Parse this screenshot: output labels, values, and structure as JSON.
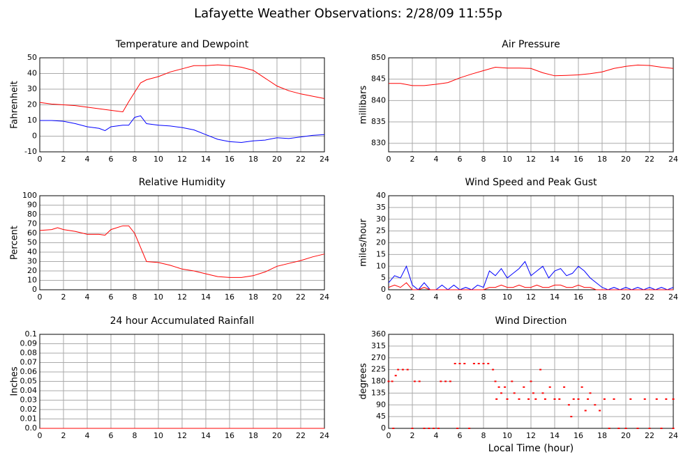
{
  "title": "Lafayette Weather Observations: 2/28/09 11:55p",
  "xlabel": "Local Time (hour)",
  "chart_data": [
    {
      "type": "line",
      "title": "Temperature and Dewpoint",
      "ylabel": "Fahrenheit",
      "x": [
        0,
        1,
        2,
        3,
        4,
        5,
        5.5,
        6,
        7,
        7.5,
        8,
        8.5,
        9,
        10,
        11,
        12,
        13,
        14,
        15,
        16,
        17,
        18,
        19,
        20,
        21,
        22,
        23,
        24
      ],
      "series": [
        {
          "color": "#ff0000",
          "values": [
            21.5,
            20.5,
            20,
            19.5,
            18.5,
            17.5,
            17,
            16.5,
            15.5,
            22,
            28,
            34,
            36,
            38,
            41,
            43,
            45,
            45,
            45.5,
            45,
            44,
            42,
            37,
            32,
            29,
            27,
            25.5,
            24
          ]
        },
        {
          "color": "#0000ff",
          "values": [
            10,
            10,
            9.5,
            8,
            6,
            5,
            3.5,
            6,
            7,
            7,
            12,
            13,
            8,
            7,
            6.5,
            5.5,
            4,
            1,
            -2,
            -3.5,
            -4,
            -3,
            -2.5,
            -1,
            -1.5,
            -0.5,
            0.5,
            1
          ]
        }
      ],
      "xlim": [
        0,
        24
      ],
      "xticks": [
        0,
        2,
        4,
        6,
        8,
        10,
        12,
        14,
        16,
        18,
        20,
        22,
        24
      ],
      "ylim": [
        -10,
        50
      ],
      "yticks": [
        -10,
        0,
        10,
        20,
        30,
        40,
        50
      ],
      "grid": true
    },
    {
      "type": "line",
      "title": "Air Pressure",
      "ylabel": "millibars",
      "x": [
        0,
        1,
        2,
        3,
        4,
        5,
        6,
        7,
        8,
        9,
        10,
        11,
        12,
        13,
        14,
        15,
        16,
        17,
        18,
        19,
        20,
        21,
        22,
        23,
        24
      ],
      "series": [
        {
          "color": "#ff0000",
          "values": [
            844,
            844,
            843.5,
            843.5,
            843.8,
            844.2,
            845.3,
            846.2,
            847,
            847.8,
            847.6,
            847.6,
            847.5,
            846.5,
            845.8,
            845.9,
            846,
            846.3,
            846.7,
            847.5,
            848,
            848.3,
            848.2,
            847.8,
            847.5
          ]
        }
      ],
      "xlim": [
        0,
        24
      ],
      "xticks": [
        0,
        2,
        4,
        6,
        8,
        10,
        12,
        14,
        16,
        18,
        20,
        22,
        24
      ],
      "ylim": [
        828,
        850
      ],
      "yticks": [
        830,
        835,
        840,
        845,
        850
      ],
      "grid": true
    },
    {
      "type": "line",
      "title": "Relative Humidity",
      "ylabel": "Percent",
      "x": [
        0,
        1,
        1.5,
        2,
        3,
        4,
        5,
        5.5,
        6,
        7,
        7.5,
        8,
        8.5,
        9,
        10,
        11,
        12,
        13,
        14,
        15,
        16,
        17,
        18,
        19,
        20,
        21,
        22,
        23,
        24
      ],
      "series": [
        {
          "color": "#ff0000",
          "values": [
            63,
            64,
            66,
            64,
            62,
            59,
            59,
            58,
            64,
            68,
            68,
            60,
            45,
            30,
            29,
            26,
            22,
            20,
            17,
            14,
            13,
            13,
            15,
            19,
            25,
            28,
            31,
            35,
            38
          ]
        }
      ],
      "xlim": [
        0,
        24
      ],
      "xticks": [
        0,
        2,
        4,
        6,
        8,
        10,
        12,
        14,
        16,
        18,
        20,
        22,
        24
      ],
      "ylim": [
        0,
        100
      ],
      "yticks": [
        0,
        10,
        20,
        30,
        40,
        50,
        60,
        70,
        80,
        90,
        100
      ],
      "grid": true
    },
    {
      "type": "line",
      "title": "Wind Speed and Peak Gust",
      "ylabel": "miles/hour",
      "x": [
        0,
        0.5,
        1,
        1.5,
        2,
        2.5,
        3,
        3.5,
        4,
        4.5,
        5,
        5.5,
        6,
        6.5,
        7,
        7.5,
        8,
        8.5,
        9,
        9.5,
        10,
        10.5,
        11,
        11.5,
        12,
        12.5,
        13,
        13.5,
        14,
        14.5,
        15,
        15.5,
        16,
        16.5,
        17,
        17.5,
        18,
        18.5,
        19,
        19.5,
        20,
        20.5,
        21,
        21.5,
        22,
        22.5,
        23,
        23.5,
        24
      ],
      "series": [
        {
          "color": "#0000ff",
          "values": [
            3,
            6,
            5,
            10,
            2,
            0,
            3,
            0,
            0,
            2,
            0,
            2,
            0,
            1,
            0,
            2,
            1,
            8,
            6,
            9,
            5,
            7,
            9,
            12,
            6,
            8,
            10,
            5,
            8,
            9,
            6,
            7,
            10,
            8,
            5,
            3,
            1,
            0,
            1,
            0,
            1,
            0,
            1,
            0,
            1,
            0,
            1,
            0,
            1
          ]
        },
        {
          "color": "#ff0000",
          "values": [
            1,
            2,
            1,
            3,
            0,
            0,
            1,
            0,
            0,
            0,
            0,
            0,
            0,
            0,
            0,
            0,
            0,
            1,
            1,
            2,
            1,
            1,
            2,
            1,
            1,
            2,
            1,
            1,
            2,
            2,
            1,
            1,
            2,
            1,
            1,
            0,
            0,
            0,
            0,
            0,
            0,
            0,
            0,
            0,
            0,
            0,
            0,
            0,
            0
          ]
        }
      ],
      "xlim": [
        0,
        24
      ],
      "xticks": [
        0,
        2,
        4,
        6,
        8,
        10,
        12,
        14,
        16,
        18,
        20,
        22,
        24
      ],
      "ylim": [
        0,
        40
      ],
      "yticks": [
        0,
        5,
        10,
        15,
        20,
        25,
        30,
        35,
        40
      ],
      "grid": true
    },
    {
      "type": "line",
      "title": "24 hour Accumulated Rainfall",
      "ylabel": "Inches",
      "x": [
        0,
        24
      ],
      "series": [
        {
          "color": "#ff0000",
          "values": [
            0,
            0
          ]
        }
      ],
      "xlim": [
        0,
        24
      ],
      "xticks": [
        0,
        2,
        4,
        6,
        8,
        10,
        12,
        14,
        16,
        18,
        20,
        22,
        24
      ],
      "ylim": [
        0,
        0.1
      ],
      "yticks": [
        {
          "value": 0,
          "label": "0.0"
        },
        0.01,
        0.02,
        0.03,
        0.04,
        0.05,
        0.06,
        0.07,
        0.08,
        0.09,
        0.1
      ],
      "grid": true
    },
    {
      "type": "scatter",
      "title": "Wind Direction",
      "ylabel": "degrees",
      "x": [
        0,
        0.3,
        0.4,
        0.6,
        0.8,
        1.2,
        1.6,
        2,
        2.2,
        2.6,
        3,
        3.4,
        3.8,
        4.2,
        4.4,
        4.8,
        5.2,
        5.6,
        5.8,
        6,
        6.4,
        6.8,
        7.2,
        7.6,
        8,
        8.4,
        8.8,
        9,
        9.1,
        9.3,
        9.5,
        9.8,
        10,
        10.4,
        10.6,
        11,
        11.4,
        11.8,
        12,
        12.2,
        12.4,
        12.8,
        13,
        13.2,
        13.6,
        14,
        14.4,
        14.8,
        15.2,
        15.4,
        15.6,
        16,
        16.3,
        16.6,
        16.8,
        17,
        17.4,
        17.8,
        18.2,
        18.6,
        19,
        19.4,
        20,
        20.4,
        21,
        21.6,
        22,
        22.6,
        23,
        23.4,
        24,
        24
      ],
      "series": [
        {
          "color": "#ff0000",
          "values": [
            180,
            180,
            0,
            202,
            225,
            225,
            225,
            0,
            180,
            180,
            0,
            0,
            0,
            0,
            180,
            180,
            180,
            248,
            0,
            248,
            248,
            0,
            248,
            248,
            248,
            248,
            225,
            180,
            112,
            158,
            135,
            158,
            112,
            180,
            135,
            112,
            158,
            112,
            180,
            135,
            112,
            225,
            135,
            112,
            158,
            112,
            112,
            158,
            90,
            45,
            112,
            112,
            158,
            68,
            112,
            135,
            90,
            68,
            112,
            0,
            112,
            0,
            0,
            112,
            0,
            112,
            0,
            112,
            0,
            112,
            0,
            112
          ]
        }
      ],
      "xlim": [
        0,
        24
      ],
      "xticks": [
        0,
        2,
        4,
        6,
        8,
        10,
        12,
        14,
        16,
        18,
        20,
        22,
        24
      ],
      "ylim": [
        0,
        360
      ],
      "yticks": [
        0,
        45,
        90,
        135,
        180,
        225,
        270,
        315,
        360
      ],
      "grid": true
    }
  ]
}
